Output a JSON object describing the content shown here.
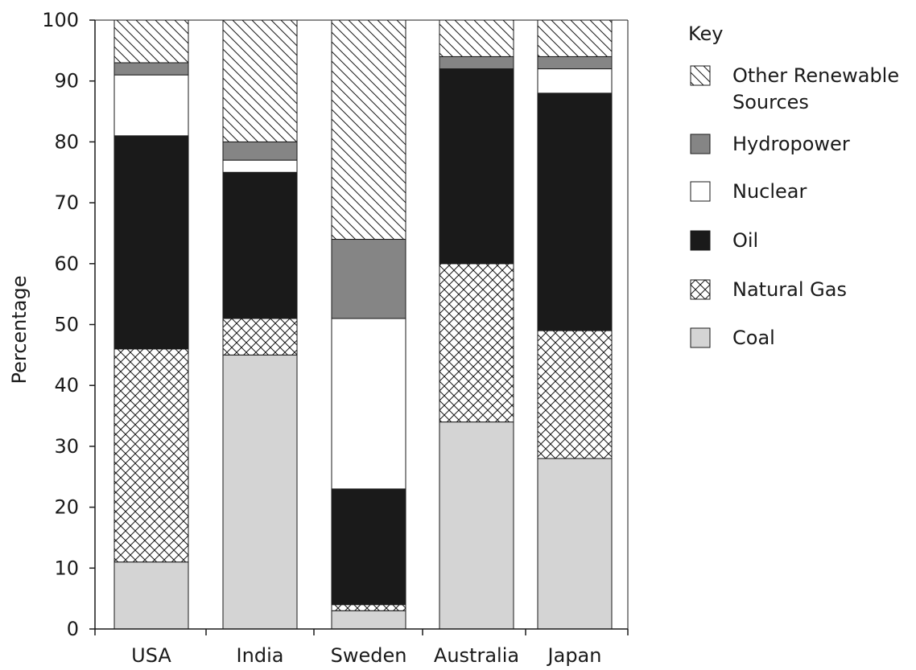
{
  "chart_data": {
    "type": "bar",
    "stacked": true,
    "ylabel": "Percentage",
    "xlabel": "",
    "ylim": [
      0,
      100
    ],
    "yticks": [
      0,
      10,
      20,
      30,
      40,
      50,
      60,
      70,
      80,
      90,
      100
    ],
    "grid": false,
    "legend_title": "Key",
    "legend_position": "right",
    "categories": [
      "USA",
      "India",
      "Sweden",
      "Australia",
      "Japan"
    ],
    "series": [
      {
        "name": "Coal",
        "values": [
          11,
          45,
          3,
          34,
          28
        ],
        "fill": "#d4d4d4",
        "pattern": "solid"
      },
      {
        "name": "Natural Gas",
        "values": [
          35,
          6,
          1,
          26,
          21
        ],
        "fill": "#ffffff",
        "pattern": "crosshatch"
      },
      {
        "name": "Oil",
        "values": [
          35,
          24,
          19,
          32,
          39
        ],
        "fill": "#1a1a1a",
        "pattern": "solid"
      },
      {
        "name": "Nuclear",
        "values": [
          10,
          2,
          28,
          0,
          4
        ],
        "fill": "#ffffff",
        "pattern": "solid"
      },
      {
        "name": "Hydropower",
        "values": [
          2,
          3,
          13,
          2,
          2
        ],
        "fill": "#858585",
        "pattern": "solid"
      },
      {
        "name": "Other Renewable Sources",
        "values": [
          7,
          20,
          36,
          6,
          6
        ],
        "fill": "#ffffff",
        "pattern": "diagonal"
      }
    ],
    "legend_entries": [
      {
        "series": "Other Renewable Sources",
        "lines": [
          "Other Renewable",
          "Sources"
        ]
      },
      {
        "series": "Hydropower",
        "lines": [
          "Hydropower"
        ]
      },
      {
        "series": "Nuclear",
        "lines": [
          "Nuclear"
        ]
      },
      {
        "series": "Oil",
        "lines": [
          "Oil"
        ]
      },
      {
        "series": "Natural Gas",
        "lines": [
          "Natural Gas"
        ]
      },
      {
        "series": "Coal",
        "lines": [
          "Coal"
        ]
      }
    ]
  }
}
